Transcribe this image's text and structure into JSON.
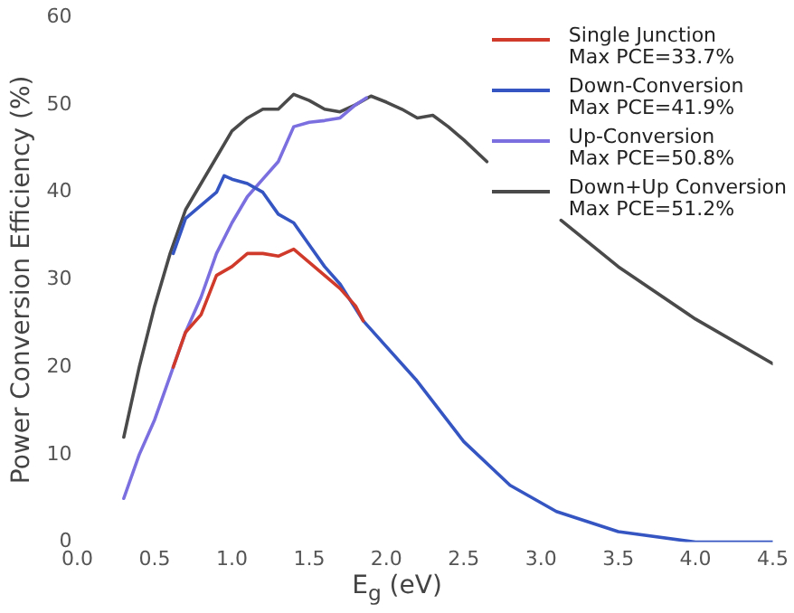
{
  "chart_data": {
    "type": "line",
    "xlabel": "E$_{g}$ (eV)",
    "ylabel": "Power Conversion Efficiency (%)",
    "xlim": [
      0,
      4.5
    ],
    "xticks": [
      {
        "value": 0,
        "label": "0.0"
      },
      {
        "value": 0.5,
        "label": "0.5"
      },
      {
        "value": 1,
        "label": "1.0"
      },
      {
        "value": 1.5,
        "label": "1.5"
      },
      {
        "value": 2,
        "label": "2.0"
      },
      {
        "value": 2.5,
        "label": "2.5"
      },
      {
        "value": 3,
        "label": "3.0"
      },
      {
        "value": 3.5,
        "label": "3.5"
      },
      {
        "value": 4,
        "label": "4.0"
      },
      {
        "value": 4.5,
        "label": "4.5"
      }
    ],
    "ylim": [
      0,
      60
    ],
    "yticks": [
      0,
      10,
      20,
      30,
      40,
      50,
      60
    ],
    "grid": false,
    "legend": "top right",
    "marker": "none",
    "line_style": "solid",
    "series": [
      {
        "name": "Single Junction\nMax PCE=33.7%",
        "color": "#d03a2a",
        "x": [
          0.62,
          0.7,
          0.8,
          0.9,
          1.0,
          1.1,
          1.2,
          1.3,
          1.4,
          1.5,
          1.6,
          1.7,
          1.8,
          1.85
        ],
        "values": [
          20,
          24,
          26,
          30.5,
          31.5,
          33,
          33,
          32.7,
          33.5,
          32,
          30.5,
          29,
          27,
          25.3
        ]
      },
      {
        "name": "Down-Conversion\nMax PCE=41.9%",
        "color": "#3556c2",
        "x": [
          0.62,
          0.7,
          0.8,
          0.9,
          0.95,
          1.0,
          1.1,
          1.2,
          1.3,
          1.4,
          1.5,
          1.6,
          1.7,
          1.85,
          2.19,
          2.5,
          2.8,
          3.1,
          3.5,
          4.0,
          4.5
        ],
        "values": [
          33,
          37,
          38.5,
          40,
          41.9,
          41.5,
          41,
          40,
          37.5,
          36.5,
          34,
          31.5,
          29.5,
          25.3,
          18.6,
          11.5,
          6.5,
          3.5,
          1.2,
          0,
          0
        ]
      },
      {
        "name": "Up-Conversion\nMax PCE=50.8%",
        "color": "#7b6fe0",
        "x": [
          0.3,
          0.4,
          0.5,
          0.6,
          0.7,
          0.8,
          0.9,
          1.0,
          1.1,
          1.2,
          1.3,
          1.4,
          1.5,
          1.6,
          1.7,
          1.8,
          1.87
        ],
        "values": [
          5,
          10,
          14,
          19,
          24,
          28,
          33,
          36.5,
          39.5,
          41.5,
          43.5,
          47.5,
          48,
          48.2,
          48.5,
          50,
          50.8
        ]
      },
      {
        "name": "Down+Up Conversion\nMax PCE=51.2%",
        "color": "#4a4a4a",
        "x": [
          0.3,
          0.4,
          0.5,
          0.6,
          0.7,
          0.8,
          0.9,
          1.0,
          1.1,
          1.2,
          1.3,
          1.4,
          1.5,
          1.6,
          1.7,
          1.8,
          1.9,
          2.0,
          2.1,
          2.2,
          2.3,
          2.4,
          2.5,
          2.65,
          2.9,
          3.13,
          3.5,
          4.0,
          4.5
        ],
        "values": [
          12,
          20,
          27,
          33,
          38,
          41,
          44,
          47,
          48.5,
          49.5,
          49.5,
          51.2,
          50.5,
          49.5,
          49.2,
          50,
          51,
          50.3,
          49.5,
          48.5,
          48.8,
          47.5,
          46,
          43.5,
          null,
          36.8,
          31.5,
          25.5,
          20.4
        ]
      }
    ]
  }
}
